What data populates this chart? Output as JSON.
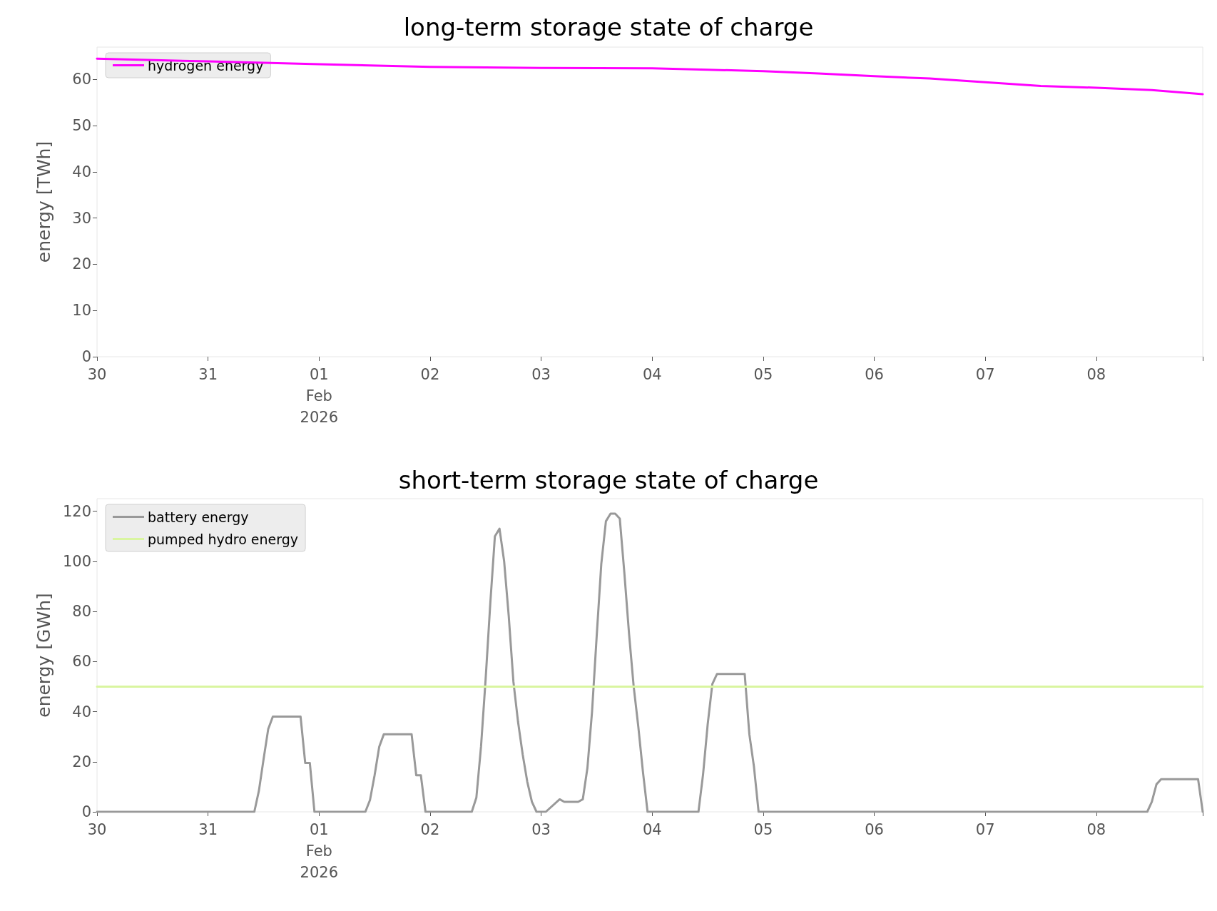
{
  "chart_data": [
    {
      "type": "line",
      "title": "long-term storage state of charge",
      "ylabel": "energy [TWh]",
      "legend": "top left",
      "grid": false,
      "xlim": [
        "2026-01-30T00:00",
        "2026-02-08T23:00"
      ],
      "xticks": [
        {
          "value": "2026-01-30T00:00",
          "label": "30"
        },
        {
          "value": "2026-01-31T00:00",
          "label": "31"
        },
        {
          "value": "2026-02-01T00:00",
          "label": "01\nFeb\n2026"
        },
        {
          "value": "2026-02-02T00:00",
          "label": "02"
        },
        {
          "value": "2026-02-03T00:00",
          "label": "03"
        },
        {
          "value": "2026-02-04T00:00",
          "label": "04"
        },
        {
          "value": "2026-02-05T00:00",
          "label": "05"
        },
        {
          "value": "2026-02-06T00:00",
          "label": "06"
        },
        {
          "value": "2026-02-07T00:00",
          "label": "07"
        },
        {
          "value": "2026-02-08T00:00",
          "label": "08"
        },
        {
          "value": "2026-02-08T23:00",
          "label": null
        }
      ],
      "ylim": [
        0,
        67
      ],
      "yticks": [
        0,
        10,
        20,
        30,
        40,
        50,
        60
      ],
      "series": [
        {
          "name": "hydrogen energy",
          "color": "#ff00ff",
          "x": [
            "2026-01-30T00:00",
            "2026-01-31T00:00",
            "2026-02-01T00:00",
            "2026-02-02T00:00",
            "2026-02-03T00:00",
            "2026-02-04T00:00",
            "2026-02-04T12:00",
            "2026-02-05T00:00",
            "2026-02-05T12:00",
            "2026-02-06T00:00",
            "2026-02-06T12:00",
            "2026-02-07T00:00",
            "2026-02-07T12:00",
            "2026-02-08T00:00",
            "2026-02-08T12:00",
            "2026-02-08T23:00"
          ],
          "values": [
            64.5,
            63.9,
            63.3,
            62.7,
            62.5,
            62.4,
            62.1,
            61.8,
            61.3,
            60.7,
            60.2,
            59.4,
            58.6,
            58.2,
            57.7,
            56.8
          ]
        }
      ]
    },
    {
      "type": "line",
      "title": "short-term storage state of charge",
      "ylabel": "energy [GWh]",
      "legend": "top left",
      "grid": false,
      "xlim": [
        "2026-01-30T00:00",
        "2026-02-08T23:00"
      ],
      "xticks": [
        {
          "value": "2026-01-30T00:00",
          "label": "30"
        },
        {
          "value": "2026-01-31T00:00",
          "label": "31"
        },
        {
          "value": "2026-02-01T00:00",
          "label": "01\nFeb\n2026"
        },
        {
          "value": "2026-02-02T00:00",
          "label": "02"
        },
        {
          "value": "2026-02-03T00:00",
          "label": "03"
        },
        {
          "value": "2026-02-04T00:00",
          "label": "04"
        },
        {
          "value": "2026-02-05T00:00",
          "label": "05"
        },
        {
          "value": "2026-02-06T00:00",
          "label": "06"
        },
        {
          "value": "2026-02-07T00:00",
          "label": "07"
        },
        {
          "value": "2026-02-08T00:00",
          "label": "08"
        },
        {
          "value": "2026-02-08T23:00",
          "label": null
        }
      ],
      "ylim": [
        0,
        125
      ],
      "yticks": [
        0,
        20,
        40,
        60,
        80,
        100,
        120
      ],
      "series": [
        {
          "name": "battery energy",
          "color": "#999999",
          "x": [
            "2026-01-30T00:00",
            "2026-01-31T10:00",
            "2026-01-31T11:00",
            "2026-01-31T12:00",
            "2026-01-31T13:00",
            "2026-01-31T14:00",
            "2026-01-31T20:00",
            "2026-01-31T21:00",
            "2026-01-31T22:00",
            "2026-01-31T23:00",
            "2026-02-01T10:00",
            "2026-02-01T11:00",
            "2026-02-01T12:00",
            "2026-02-01T13:00",
            "2026-02-01T14:00",
            "2026-02-01T20:00",
            "2026-02-01T21:00",
            "2026-02-01T22:00",
            "2026-02-01T23:00",
            "2026-02-02T09:00",
            "2026-02-02T10:00",
            "2026-02-02T11:00",
            "2026-02-02T12:00",
            "2026-02-02T13:00",
            "2026-02-02T14:00",
            "2026-02-02T15:00",
            "2026-02-02T16:00",
            "2026-02-02T17:00",
            "2026-02-02T18:00",
            "2026-02-02T19:00",
            "2026-02-02T20:00",
            "2026-02-02T21:00",
            "2026-02-02T22:00",
            "2026-02-02T23:00",
            "2026-02-03T01:00",
            "2026-02-03T04:00",
            "2026-02-03T05:00",
            "2026-02-03T08:00",
            "2026-02-03T09:00",
            "2026-02-03T10:00",
            "2026-02-03T11:00",
            "2026-02-03T12:00",
            "2026-02-03T13:00",
            "2026-02-03T14:00",
            "2026-02-03T15:00",
            "2026-02-03T16:00",
            "2026-02-03T17:00",
            "2026-02-03T18:00",
            "2026-02-03T19:00",
            "2026-02-03T20:00",
            "2026-02-03T21:00",
            "2026-02-03T22:00",
            "2026-02-03T23:00",
            "2026-02-04T10:00",
            "2026-02-04T11:00",
            "2026-02-04T12:00",
            "2026-02-04T13:00",
            "2026-02-04T14:00",
            "2026-02-04T20:00",
            "2026-02-04T21:00",
            "2026-02-04T22:00",
            "2026-02-04T23:00",
            "2026-02-08T11:00",
            "2026-02-08T12:00",
            "2026-02-08T13:00",
            "2026-02-08T14:00",
            "2026-02-08T22:00",
            "2026-02-08T23:00"
          ],
          "values": [
            0,
            0,
            8.5,
            21,
            33,
            38,
            38,
            19.5,
            19.5,
            0,
            0,
            4.7,
            14.6,
            26,
            31,
            31,
            14.6,
            14.6,
            0,
            0,
            5.7,
            26,
            53,
            83,
            110,
            113,
            100,
            78,
            52,
            36,
            23,
            12,
            4,
            0,
            0,
            5,
            4,
            4,
            5,
            17.5,
            40,
            70,
            99,
            116,
            119,
            119,
            117,
            95,
            71,
            50,
            34,
            16,
            0,
            0,
            15,
            35,
            51,
            55,
            55,
            31,
            18,
            0,
            0,
            4,
            11,
            13,
            13,
            0
          ]
        },
        {
          "name": "pumped hydro energy",
          "color": "#d9f5a0",
          "x": [
            "2026-01-30T00:00",
            "2026-02-08T23:00"
          ],
          "values": [
            50,
            50
          ]
        }
      ]
    }
  ]
}
